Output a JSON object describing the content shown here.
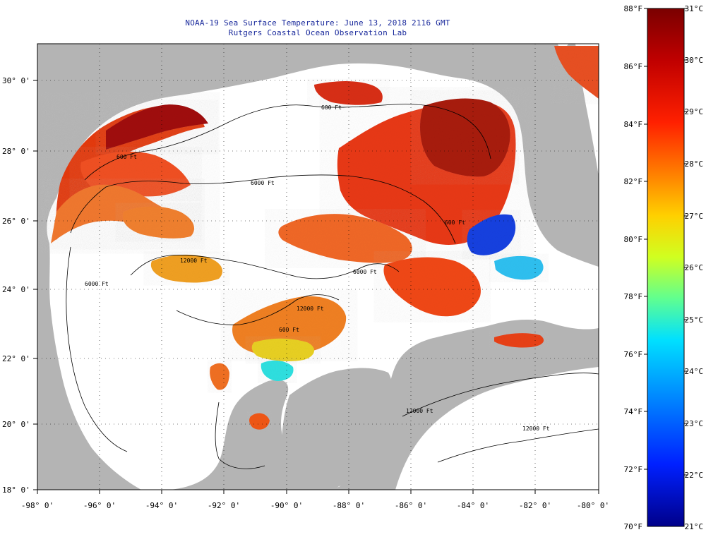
{
  "title": {
    "line1": "NOAA-19 Sea Surface Temperature:  June 13, 2018 2116 GMT",
    "line2": "Rutgers Coastal Ocean Observation Lab"
  },
  "map": {
    "lon_range": [
      -98,
      -80
    ],
    "lat_range": [
      18,
      31
    ],
    "lon_labels": [
      "-98° 0'",
      "-96° 0'",
      "-94° 0'",
      "-92° 0'",
      "-90° 0'",
      "-88° 0'",
      "-86° 0'",
      "-84° 0'",
      "-82° 0'",
      "-80° 0'"
    ],
    "lat_labels": [
      "30° 0'",
      "28° 0'",
      "26° 0'",
      "24° 0'",
      "22° 0'",
      "20° 0'",
      "18° 0'"
    ],
    "land_color": "#b4b4b4",
    "cloud_color": "#ffffff",
    "grid": "dotted",
    "contour_labels": [
      "600 Ft",
      "600 Ft",
      "6000 Ft",
      "12000 Ft",
      "6000 Ft",
      "600 Ft",
      "6000 Ft",
      "12000 Ft",
      "600 Ft",
      "12000 Ft",
      "12000 Ft"
    ]
  },
  "colorbar": {
    "fahrenheit": [
      "88°F",
      "86°F",
      "84°F",
      "82°F",
      "80°F",
      "78°F",
      "76°F",
      "74°F",
      "72°F",
      "70°F"
    ],
    "celsius": [
      "31°C",
      "30°C",
      "29°C",
      "28°C",
      "27°C",
      "26°C",
      "25°C",
      "24°C",
      "23°C",
      "22°C",
      "21°C"
    ],
    "gradient": [
      "#7a0000",
      "#c00000",
      "#ff2000",
      "#ff8000",
      "#ffd000",
      "#d0ff20",
      "#60ff90",
      "#00e0ff",
      "#0080ff",
      "#0020ff",
      "#00008a"
    ]
  }
}
